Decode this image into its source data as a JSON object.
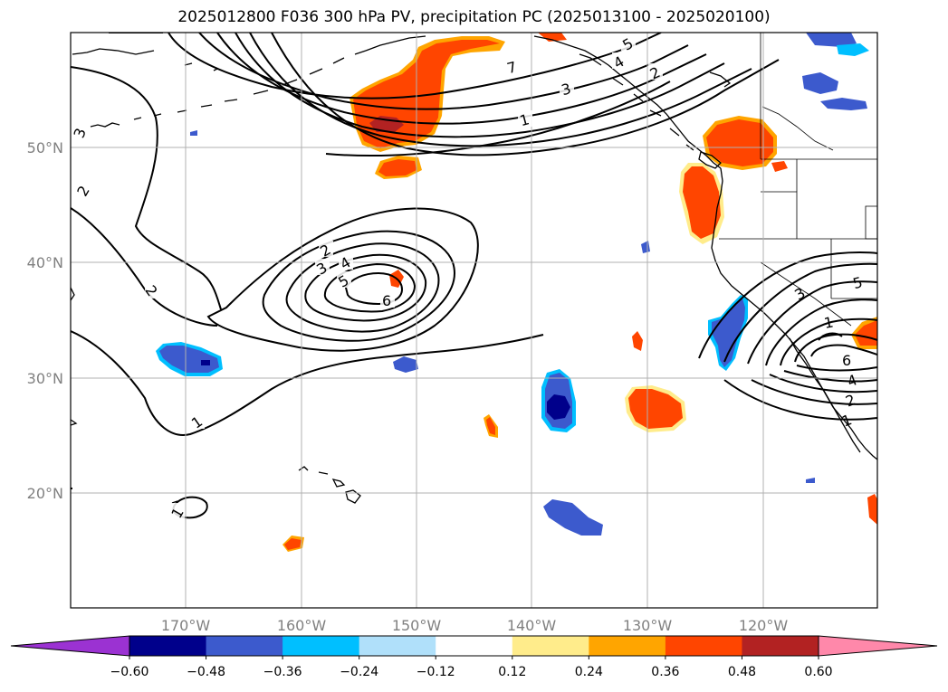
{
  "title": "2025012800 F036 300 hPa PV, precipitation PC (2025013100 - 2025020100)",
  "lat_labels": [
    "50°N",
    "40°N",
    "30°N",
    "20°N"
  ],
  "lon_labels": [
    "170°W",
    "160°W",
    "150°W",
    "140°W",
    "130°W",
    "120°W"
  ],
  "contour_labels": {
    "north_jet": [
      "5",
      "4",
      "7",
      "3",
      "2",
      "1"
    ],
    "west_trough": [
      "3",
      "2",
      "2",
      "1",
      "1"
    ],
    "central_low": [
      "2",
      "3",
      "4",
      "5",
      "6"
    ],
    "coastal_low": [
      "3",
      "5",
      "1",
      "6",
      "4",
      "2",
      "1"
    ]
  },
  "colorbar": {
    "ticks": [
      "−0.60",
      "−0.48",
      "−0.36",
      "−0.24",
      "−0.12",
      "0.12",
      "0.24",
      "0.36",
      "0.48",
      "0.60"
    ],
    "colors": {
      "under": "#9b32d2",
      "bins": [
        "#00008b",
        "#3c5acd",
        "#00bfff",
        "#b0e0fa",
        "#ffffff",
        "#ffec8b",
        "#ffa500",
        "#ff4500",
        "#b22222"
      ],
      "over": "#ff88aa"
    }
  },
  "colors": {
    "contour": "#000000",
    "grid": "#b0b0b0",
    "label_gray": "#808080"
  }
}
